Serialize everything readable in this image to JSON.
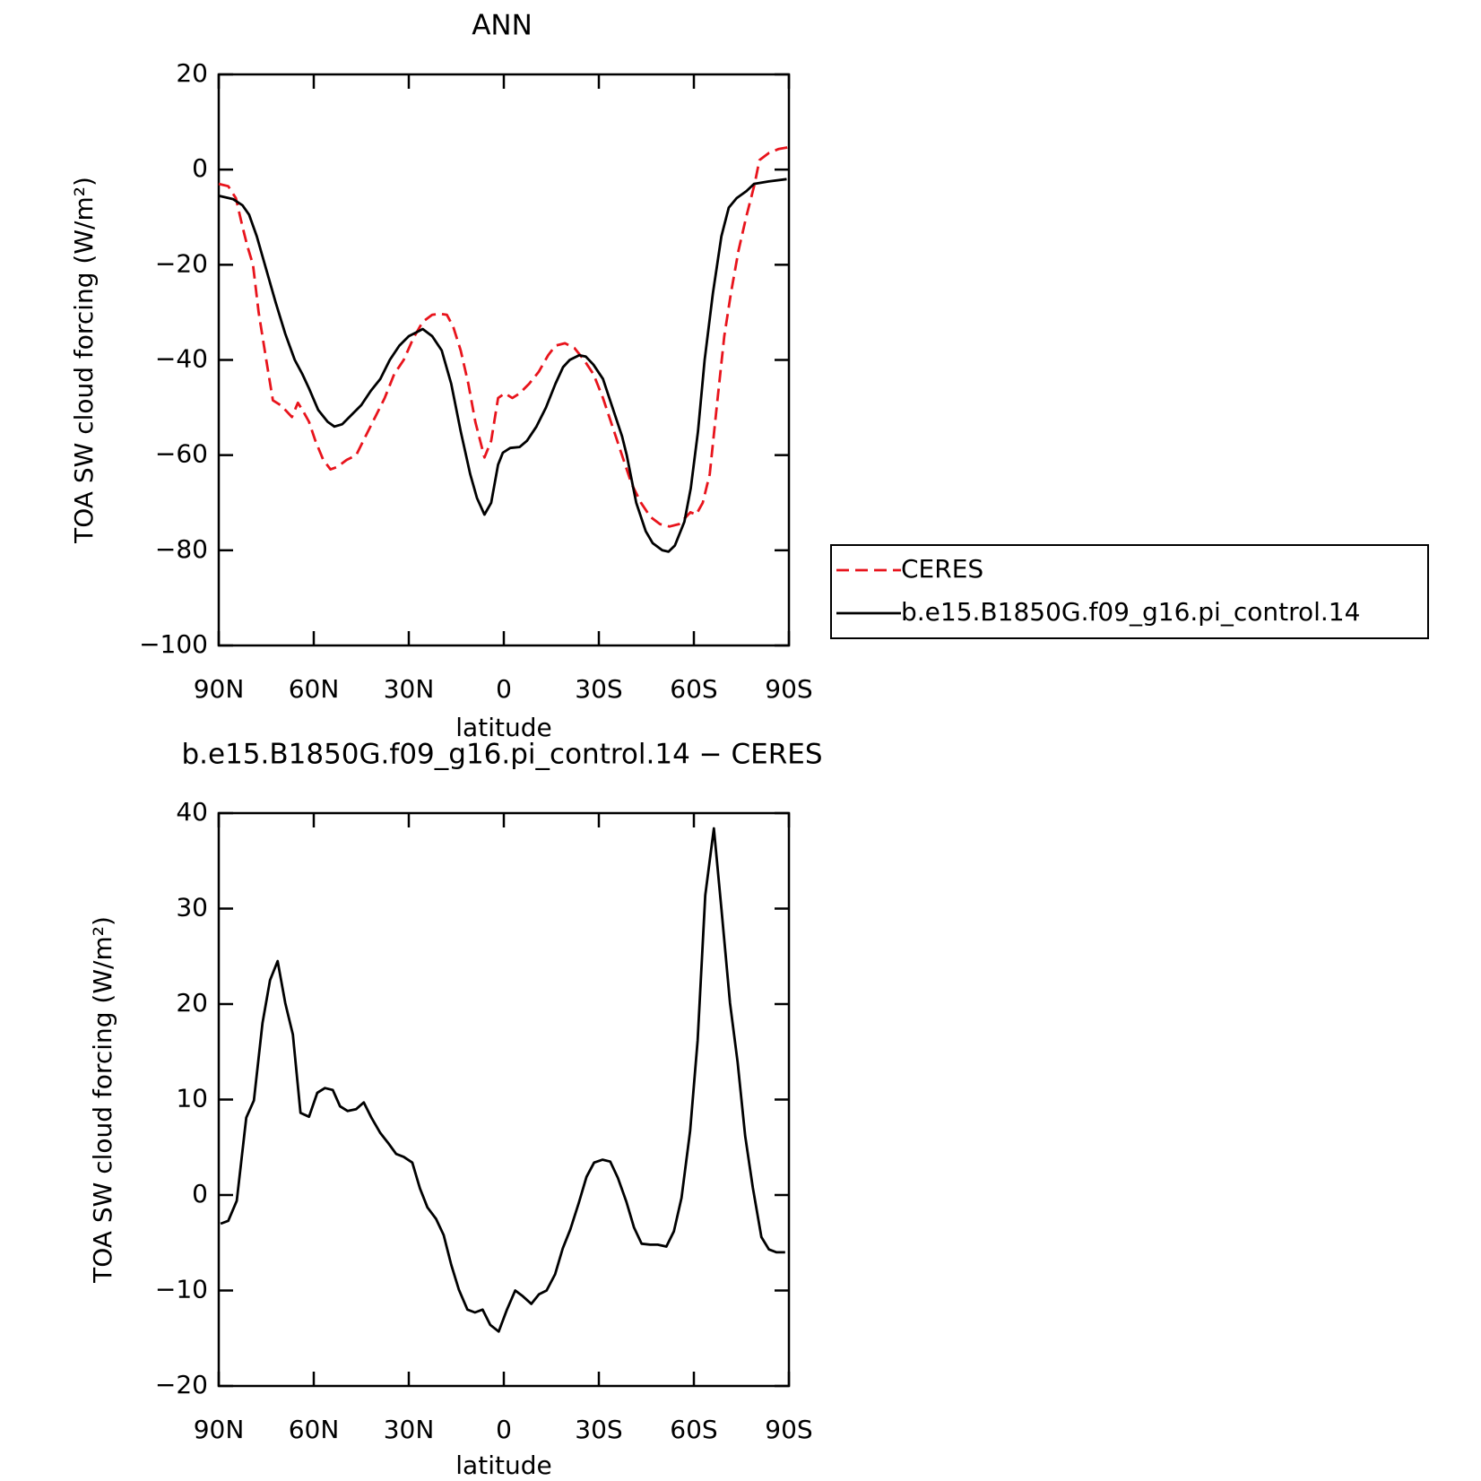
{
  "chart_data": [
    {
      "type": "line",
      "title": "ANN",
      "xlabel": "latitude",
      "ylabel": "TOA SW cloud forcing (W/m²)",
      "xlim": [
        90,
        -90
      ],
      "ylim": [
        -100,
        20
      ],
      "xticks": [
        {
          "value": 90,
          "label": "90N"
        },
        {
          "value": 60,
          "label": "60N"
        },
        {
          "value": 30,
          "label": "30N"
        },
        0,
        {
          "value": -30,
          "label": "30S"
        },
        {
          "value": -60,
          "label": "60S"
        },
        {
          "value": -90,
          "label": "90S"
        }
      ],
      "yticks": [
        20,
        0,
        {
          "value": -20,
          "label": "−20"
        },
        {
          "value": -40,
          "label": "−40"
        },
        {
          "value": -60,
          "label": "−60"
        },
        {
          "value": -80,
          "label": "−80"
        },
        {
          "value": -100,
          "label": "−100"
        }
      ],
      "legend": "right",
      "series": [
        {
          "name": "CERES",
          "color": "#e8141c",
          "style": "dashed",
          "x": [
            90,
            87,
            84.6,
            82.5,
            81,
            79.2,
            77.4,
            75,
            72.9,
            70.5,
            69,
            66.9,
            65,
            63.6,
            61.5,
            59.5,
            57,
            54.7,
            52.6,
            49.6,
            46.6,
            43.6,
            40.6,
            37.6,
            34.6,
            31.6,
            28.6,
            25.6,
            22.6,
            20.2,
            18,
            16,
            13.6,
            11.2,
            9,
            6.1,
            4,
            1.8,
            -0.3,
            -2.7,
            -5,
            -8,
            -11,
            -14,
            -16.3,
            -19.3,
            -22.3,
            -25.3,
            -28.3,
            -31.3,
            -34.3,
            -37.3,
            -40.3,
            -43.3,
            -46.3,
            -49.3,
            -52.3,
            -55.3,
            -56.8,
            -58.9,
            -60.7,
            -62.8,
            -65,
            -67.2,
            -69.6,
            -71.7,
            -74.1,
            -76.5,
            -79.2,
            -80.7,
            -83.7,
            -86.7,
            -90
          ],
          "values": [
            -3,
            -3.5,
            -6,
            -12,
            -16,
            -20,
            -30,
            -40,
            -48.5,
            -49.5,
            -50.5,
            -52,
            -49,
            -50.5,
            -53,
            -57,
            -61,
            -63,
            -62.5,
            -61,
            -60,
            -56,
            -52,
            -48,
            -43,
            -40,
            -35.5,
            -32,
            -30.5,
            -30.3,
            -30.5,
            -33,
            -38,
            -45,
            -53,
            -60.5,
            -57,
            -48,
            -47,
            -48,
            -47,
            -45,
            -42.5,
            -39,
            -37,
            -36.5,
            -37.5,
            -40,
            -43,
            -48,
            -54,
            -60,
            -66,
            -70,
            -73,
            -74.5,
            -75,
            -74.5,
            -73.5,
            -72,
            -72.5,
            -70,
            -64,
            -50,
            -35,
            -26,
            -17,
            -10,
            -3,
            2,
            3.5,
            4.3,
            4.7
          ]
        },
        {
          "name": "b.e15.B1850G.f09_g16.pi_control.14",
          "color": "#000000",
          "style": "solid",
          "x": [
            90,
            85.5,
            82.5,
            80.4,
            78,
            75,
            72,
            69,
            66,
            63.6,
            61.5,
            58.6,
            55.6,
            53.5,
            51,
            48,
            45,
            42,
            39,
            36,
            33,
            30,
            27,
            25.6,
            22.6,
            19.6,
            16.6,
            13.6,
            10.6,
            8.5,
            6.1,
            4,
            1.8,
            0.3,
            -2,
            -5,
            -7.3,
            -10.3,
            -13.3,
            -16.3,
            -18.7,
            -20.8,
            -23.8,
            -25.9,
            -28.3,
            -31.3,
            -34.3,
            -37.3,
            -38.8,
            -41.8,
            -44.8,
            -47,
            -50,
            -52,
            -54,
            -57,
            -59,
            -61.3,
            -63.4,
            -66,
            -68.7,
            -71,
            -73.5,
            -76.6,
            -79,
            -83.6,
            -89.3
          ],
          "values": [
            -5.5,
            -6.2,
            -7.5,
            -9.5,
            -14,
            -21,
            -28,
            -34.5,
            -40,
            -43,
            -46,
            -50.5,
            -53,
            -54,
            -53.5,
            -51.5,
            -49.5,
            -46.5,
            -44,
            -40,
            -37,
            -35,
            -34,
            -33.5,
            -35,
            -38,
            -45,
            -55,
            -64,
            -69,
            -72.5,
            -70,
            -62,
            -59.5,
            -58.5,
            -58.3,
            -57,
            -54,
            -50,
            -45,
            -41.5,
            -40,
            -39,
            -39.3,
            -41,
            -44,
            -50,
            -56,
            -60,
            -70,
            -76,
            -78.5,
            -80,
            -80.3,
            -79,
            -74,
            -67,
            -55,
            -40,
            -26,
            -14,
            -8,
            -6,
            -4.5,
            -3,
            -2.5,
            -2
          ]
        }
      ]
    },
    {
      "type": "line",
      "title": "b.e15.B1850G.f09_g16.pi_control.14 − CERES",
      "xlabel": "latitude",
      "ylabel": "TOA SW cloud forcing (W/m²)",
      "xlim": [
        90,
        -90
      ],
      "ylim": [
        -20,
        40
      ],
      "xticks": [
        {
          "value": 90,
          "label": "90N"
        },
        {
          "value": 60,
          "label": "60N"
        },
        {
          "value": 30,
          "label": "30N"
        },
        0,
        {
          "value": -30,
          "label": "30S"
        },
        {
          "value": -60,
          "label": "60S"
        },
        {
          "value": -90,
          "label": "90S"
        }
      ],
      "yticks": [
        40,
        30,
        20,
        10,
        0,
        {
          "value": -10,
          "label": "−10"
        },
        {
          "value": -20,
          "label": "−20"
        }
      ],
      "series": [
        {
          "color": "#000000",
          "style": "solid",
          "x": [
            89.4,
            87,
            84.3,
            81.3,
            78.9,
            76.2,
            73.8,
            71.4,
            69,
            66.6,
            64.2,
            61.5,
            58.9,
            56.5,
            54,
            51.7,
            49.3,
            46.6,
            44.2,
            41.8,
            39,
            36.4,
            34,
            31.6,
            28.9,
            26.5,
            24.1,
            21.4,
            19,
            16.6,
            14.2,
            11.5,
            9.1,
            6.7,
            4.3,
            1.6,
            -1,
            -3.6,
            -6,
            -8.7,
            -11.1,
            -13.5,
            -16.2,
            -18.6,
            -21,
            -23.7,
            -26.1,
            -28.5,
            -31.2,
            -33.6,
            -36,
            -38.7,
            -41.1,
            -43.5,
            -46.2,
            -48.6,
            -51.3,
            -53.7,
            -56.1,
            -58.8,
            -61.2,
            -63.6,
            -66.3,
            -68.7,
            -71.4,
            -73.8,
            -76.2,
            -78.6,
            -81.3,
            -83.7,
            -86.1,
            -88.8
          ],
          "values": [
            -3,
            -2.7,
            -0.6,
            8.1,
            9.9,
            18,
            22.5,
            24.5,
            20.1,
            16.8,
            8.6,
            8.2,
            10.7,
            11.2,
            11,
            9.3,
            8.8,
            9,
            9.7,
            8.1,
            6.5,
            5.4,
            4.3,
            4,
            3.4,
            0.7,
            -1.3,
            -2.5,
            -4.2,
            -7.3,
            -9.9,
            -12,
            -12.3,
            -12,
            -13.6,
            -14.3,
            -12,
            -10,
            -10.6,
            -11.4,
            -10.4,
            -10,
            -8.3,
            -5.6,
            -3.6,
            -0.8,
            1.9,
            3.4,
            3.7,
            3.5,
            1.8,
            -0.7,
            -3.4,
            -5.1,
            -5.2,
            -5.2,
            -5.4,
            -3.8,
            -0.3,
            6.7,
            16.2,
            31.4,
            38.4,
            30,
            20.1,
            13.9,
            6.2,
            0.8,
            -4.4,
            -5.7,
            -6,
            -6
          ]
        }
      ]
    }
  ]
}
